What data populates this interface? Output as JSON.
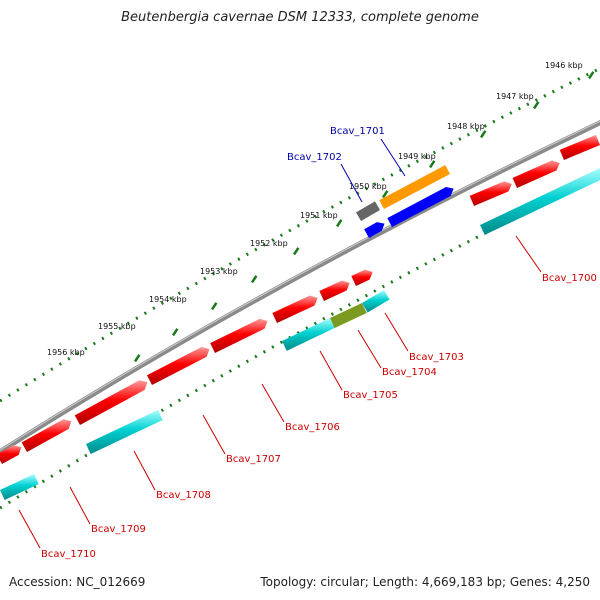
{
  "title": "Beutenbergia cavernae DSM 12333, complete genome",
  "footer": {
    "accession": "Accession: NC_012669",
    "summary": "Topology: circular; Length: 4,669,183 bp; Genes: 4,250"
  },
  "colors": {
    "forward_cds": "#ff0000",
    "reverse_cds": "#00cccc",
    "trna": "#0000ff",
    "rrna": "#ff9900",
    "other": "#666666",
    "overlap": "#7a9a20",
    "tick": "#1a7a1a",
    "backbone": "#888888",
    "label_forward": "#cc0000",
    "label_reverse": "#0000aa"
  },
  "kbp_ticks": [
    {
      "value": 1946,
      "label": "1946 kbp"
    },
    {
      "value": 1947,
      "label": "1947 kbp"
    },
    {
      "value": 1948,
      "label": "1948 kbp"
    },
    {
      "value": 1949,
      "label": "1949 kbp"
    },
    {
      "value": 1950,
      "label": "1950 kbp"
    },
    {
      "value": 1951,
      "label": "1951 kbp"
    },
    {
      "value": 1952,
      "label": "1952 kbp"
    },
    {
      "value": 1953,
      "label": "1953 kbp"
    },
    {
      "value": 1954,
      "label": "1954 kbp"
    },
    {
      "value": 1955,
      "label": "1955 kbp"
    },
    {
      "value": 1956,
      "label": "1956 kbp"
    }
  ],
  "gene_labels": [
    {
      "id": "Bcav_1700",
      "label": "Bcav_1700"
    },
    {
      "id": "Bcav_1701",
      "label": "Bcav_1701"
    },
    {
      "id": "Bcav_1702",
      "label": "Bcav_1702"
    },
    {
      "id": "Bcav_1703",
      "label": "Bcav_1703"
    },
    {
      "id": "Bcav_1704",
      "label": "Bcav_1704"
    },
    {
      "id": "Bcav_1705",
      "label": "Bcav_1705"
    },
    {
      "id": "Bcav_1706",
      "label": "Bcav_1706"
    },
    {
      "id": "Bcav_1707",
      "label": "Bcav_1707"
    },
    {
      "id": "Bcav_1708",
      "label": "Bcav_1708"
    },
    {
      "id": "Bcav_1709",
      "label": "Bcav_1709"
    },
    {
      "id": "Bcav_1710",
      "label": "Bcav_1710"
    }
  ]
}
